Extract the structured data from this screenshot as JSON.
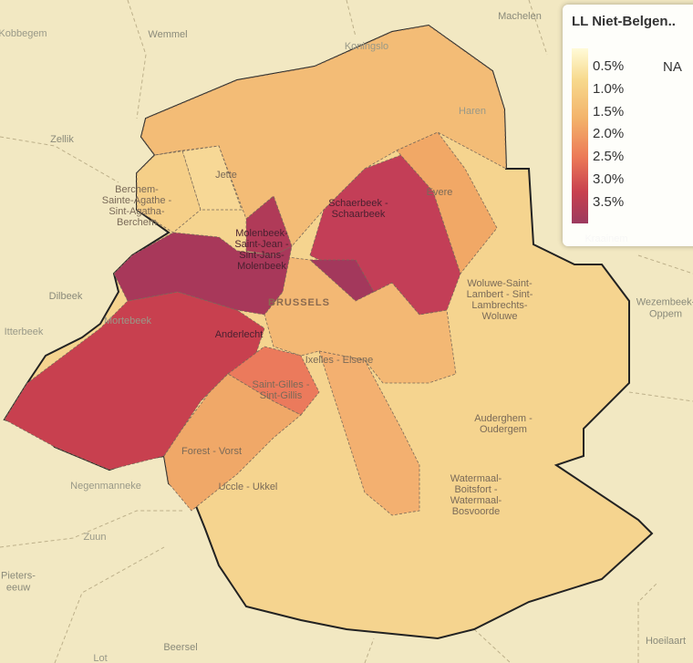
{
  "legend": {
    "title": "LL Niet-Belgen..",
    "labels": [
      "0.5%",
      "1.0%",
      "1.5%",
      "2.0%",
      "2.5%",
      "3.0%",
      "3.5%"
    ],
    "na": "NA"
  },
  "places": [
    {
      "lines": [
        "Machelen"
      ]
    },
    {
      "lines": [
        "Wemmel"
      ]
    },
    {
      "lines": [
        "Kobbegem"
      ]
    },
    {
      "lines": [
        "Koningslo"
      ]
    },
    {
      "lines": [
        "Haren"
      ]
    },
    {
      "lines": [
        "Zellik"
      ]
    },
    {
      "lines": [
        "Jette"
      ]
    },
    {
      "lines": [
        "Evere"
      ]
    },
    {
      "lines": [
        "Berchem-",
        "Sainte-Agathe -",
        "Sint-Agatha-",
        "Berchem"
      ]
    },
    {
      "lines": [
        "Schaerbeek -",
        "Schaarbeek"
      ]
    },
    {
      "lines": [
        "Molenbeek-",
        "Saint-Jean -",
        "Sint-Jans-",
        "Molenbeek"
      ]
    },
    {
      "lines": [
        "BRUSSELS"
      ]
    },
    {
      "lines": [
        "Dilbeek"
      ]
    },
    {
      "lines": [
        "Itterbeek"
      ]
    },
    {
      "lines": [
        "Mortebeek"
      ]
    },
    {
      "lines": [
        "Anderlecht"
      ]
    },
    {
      "lines": [
        "Woluwe-Saint-",
        "Lambert - Sint-",
        "Lambrechts-",
        "Woluwe"
      ]
    },
    {
      "lines": [
        "Wezembeek-",
        "Oppem"
      ]
    },
    {
      "lines": [
        "Kraainem"
      ]
    },
    {
      "lines": [
        "Ixelles - Elsene"
      ]
    },
    {
      "lines": [
        "Saint-Gilles -",
        "Sint-Gillis"
      ]
    },
    {
      "lines": [
        "Auderghem -",
        "Oudergem"
      ]
    },
    {
      "lines": [
        "Forest - Vorst"
      ]
    },
    {
      "lines": [
        "Uccle - Ukkel"
      ]
    },
    {
      "lines": [
        "Negenmanneke"
      ]
    },
    {
      "lines": [
        "Watermaal-",
        "Boitsfort -",
        "Watermaal-",
        "Bosvoorde"
      ]
    },
    {
      "lines": [
        "Zuun"
      ]
    },
    {
      "lines": [
        "Pieters-",
        "eeuw"
      ]
    },
    {
      "lines": [
        "Beersel"
      ]
    },
    {
      "lines": [
        "Hoeilaart"
      ]
    },
    {
      "lines": [
        "Lot"
      ]
    }
  ]
}
